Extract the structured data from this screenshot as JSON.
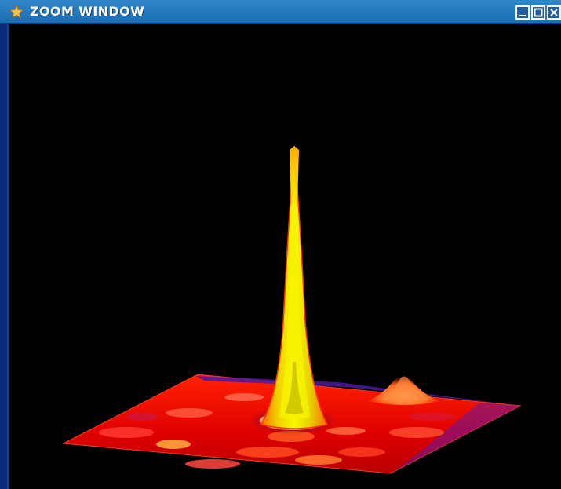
{
  "window": {
    "title": "ZOOM WINDOW",
    "controls": [
      "minimize",
      "maximize",
      "close"
    ]
  },
  "icons": {
    "app": "star-icon",
    "minimize": "minimize-icon",
    "maximize": "maximize-icon",
    "close": "close-icon"
  },
  "colors": {
    "titlebar": "#1c6eb2",
    "background": "#000000",
    "surface_low": "#d40000",
    "surface_mid": "#ff4a00",
    "peak": "#f4f400",
    "edge": "#3a1a8a"
  }
}
